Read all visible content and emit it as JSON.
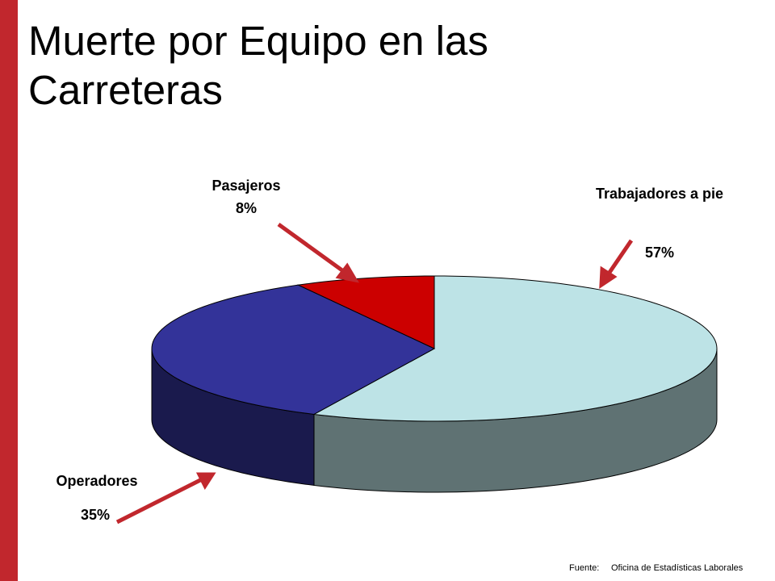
{
  "chart_data": {
    "type": "pie",
    "title": "Muerte por Equipo en las Carreteras",
    "categories": [
      "Trabajadores a pie",
      "Operadores",
      "Pasajeros"
    ],
    "values": [
      57,
      35,
      8
    ],
    "value_labels": [
      "57%",
      "35%",
      "8%"
    ],
    "colors": [
      "#bde3e6",
      "#333399",
      "#cc0000"
    ],
    "source_label": "Fuente:",
    "source": "Oficina de Estadísticas Laborales"
  }
}
